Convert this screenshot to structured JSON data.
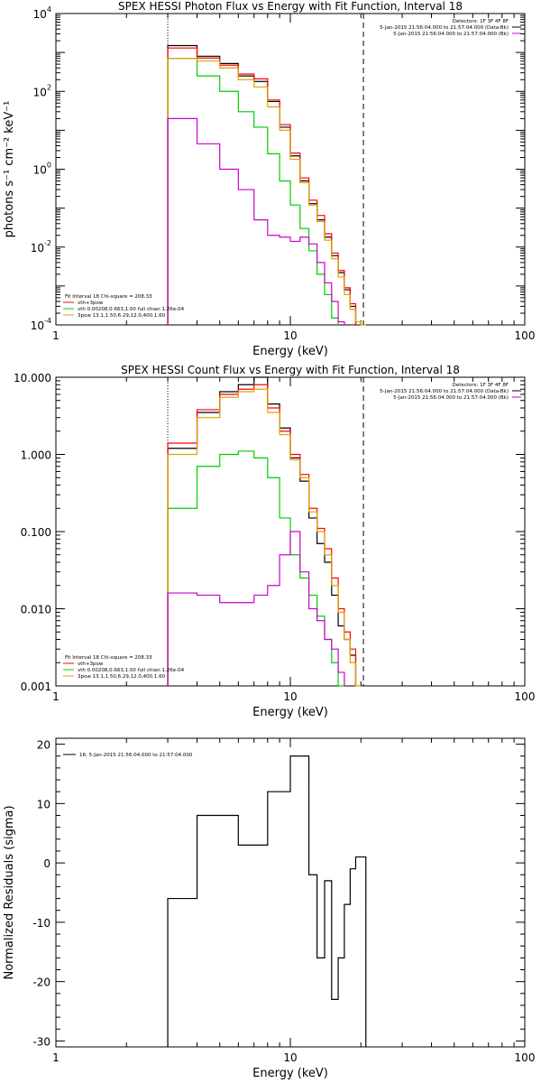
{
  "chart_data": [
    {
      "type": "line",
      "title": "SPEX HESSI Photon Flux vs Energy with Fit Function, Interval 18",
      "xlabel": "Energy (keV)",
      "ylabel": "photons s⁻¹ cm⁻² keV⁻¹",
      "xscale": "log",
      "yscale": "log",
      "xlim": [
        1,
        100
      ],
      "ylim": [
        0.0001,
        10000
      ],
      "x_ticks": [
        "1",
        "10",
        "100"
      ],
      "y_ticks": [
        {
          "base": "10",
          "exp": "4"
        },
        {
          "base": "10",
          "exp": "2"
        },
        {
          "base": "10",
          "exp": "0"
        },
        {
          "base": "10",
          "exp": "-2"
        },
        {
          "base": "10",
          "exp": "-4"
        }
      ],
      "vlines": [
        {
          "x": 3.0,
          "style": "dotted"
        },
        {
          "x": 20.5,
          "style": "dashed"
        }
      ],
      "legend_tr": [
        "Detectors: 1F 3F 4F 8F",
        "5-Jan-2015 21:56:04.000 to 21:57:04.000 (Data-Bk)",
        "5-Jan-2015 21:56:04.000 to 21:57:04.000 (Bk)"
      ],
      "legend_bl": [
        "Fit Interval 18   Chi-square = 208.33",
        "vth+3pow",
        "vth 0.00208,0.663,1.00  full chian 1.26e-04",
        "3pow 13.1,1.50,6.29,12.0,400.1.60"
      ],
      "edges": [
        3,
        4,
        5,
        6,
        7,
        8,
        9,
        10,
        11,
        12,
        13,
        14,
        15,
        16,
        17,
        18,
        19,
        20,
        21
      ],
      "series": [
        {
          "color": "#000000",
          "values": [
            1500,
            800,
            520,
            250,
            180,
            55,
            12,
            2.2,
            0.5,
            0.13,
            0.05,
            0.018,
            0.006,
            0.0022,
            0.0008,
            0.0003,
            null,
            null
          ]
        },
        {
          "color": "#ff0000",
          "values": [
            1300,
            720,
            470,
            280,
            210,
            60,
            14,
            2.6,
            0.6,
            0.16,
            0.065,
            0.022,
            0.007,
            0.0025,
            0.0009,
            0.00035,
            null,
            null
          ]
        },
        {
          "color": "#00cc00",
          "values": [
            700,
            250,
            100,
            30,
            12,
            2.5,
            0.5,
            0.12,
            0.03,
            0.008,
            0.002,
            0.0006,
            0.00015,
            null,
            null,
            null,
            null,
            null
          ]
        },
        {
          "color": "#e0a000",
          "values": [
            700,
            600,
            400,
            200,
            130,
            40,
            10,
            1.8,
            0.45,
            0.12,
            0.045,
            0.015,
            0.005,
            0.0017,
            0.0006,
            0.00025,
            0.00012,
            0.0001
          ]
        },
        {
          "color": "#cc00cc",
          "values": [
            20,
            4.5,
            1.0,
            0.3,
            0.05,
            0.02,
            0.018,
            0.014,
            0.018,
            0.012,
            0.004,
            0.0012,
            0.0004,
            0.00012,
            null,
            null,
            null,
            null
          ]
        }
      ]
    },
    {
      "type": "line",
      "title": "SPEX HESSI Count Flux vs Energy with Fit Function, Interval 18",
      "xlabel": "Energy (keV)",
      "ylabel": "",
      "xscale": "log",
      "yscale": "log",
      "xlim": [
        1,
        100
      ],
      "ylim": [
        0.001,
        10
      ],
      "x_ticks": [
        "1",
        "10",
        "100"
      ],
      "y_ticks": [
        {
          "base": "10.000",
          "exp": ""
        },
        {
          "base": "1.000",
          "exp": ""
        },
        {
          "base": "0.100",
          "exp": ""
        },
        {
          "base": "0.010",
          "exp": ""
        },
        {
          "base": "0.001",
          "exp": ""
        }
      ],
      "vlines": [
        {
          "x": 3.0,
          "style": "dotted"
        },
        {
          "x": 20.5,
          "style": "dashed"
        }
      ],
      "legend_tr": [
        "Detectors: 1F 3F 4F 8F",
        "5-Jan-2015 21:56:04.000 to 21:57:04.000 (Data-Bk)",
        "5-Jan-2015 21:56:04.000 to 21:57:04.000 (Bk)"
      ],
      "legend_bl": [
        "Fit Interval 18   Chi-square = 208.33",
        "vth+3pow",
        "vth 0.00208,0.663,1.00  full chian 1.26e-04",
        "3pow 13.1,1.50,6.29,12.0,400.1.60"
      ],
      "edges": [
        3,
        4,
        5,
        6,
        7,
        8,
        9,
        10,
        11,
        12,
        13,
        14,
        15,
        16,
        17,
        18,
        19,
        20,
        21
      ],
      "series": [
        {
          "color": "#000000",
          "values": [
            1.2,
            3.5,
            6.5,
            8.0,
            10.0,
            4.5,
            2.2,
            0.9,
            0.45,
            0.15,
            0.07,
            0.04,
            0.015,
            0.006,
            0.004,
            0.0025,
            null,
            null
          ]
        },
        {
          "color": "#ff0000",
          "values": [
            1.4,
            3.8,
            6.0,
            7.0,
            8.0,
            4.0,
            2.0,
            1.0,
            0.55,
            0.2,
            0.11,
            0.06,
            0.025,
            0.01,
            0.005,
            0.003,
            null,
            null
          ]
        },
        {
          "color": "#00cc00",
          "values": [
            0.2,
            0.7,
            1.0,
            1.1,
            0.9,
            0.5,
            0.15,
            0.05,
            0.025,
            0.015,
            0.008,
            0.004,
            0.002,
            0.001,
            null,
            null,
            null,
            null
          ]
        },
        {
          "color": "#e0a000",
          "values": [
            1.0,
            3.0,
            5.5,
            6.5,
            7.0,
            3.5,
            1.8,
            0.85,
            0.5,
            0.18,
            0.1,
            0.05,
            0.02,
            0.009,
            0.004,
            0.002,
            0.001,
            null
          ]
        },
        {
          "color": "#cc00cc",
          "values": [
            0.016,
            0.015,
            0.012,
            0.012,
            0.015,
            0.02,
            0.05,
            0.1,
            0.03,
            0.01,
            0.007,
            0.004,
            0.003,
            0.0015,
            null,
            null,
            null,
            null
          ]
        }
      ]
    },
    {
      "type": "line",
      "title": "",
      "xlabel": "Energy (keV)",
      "ylabel": "Normalized Residuals (sigma)",
      "xscale": "log",
      "yscale": "linear",
      "xlim": [
        1,
        100
      ],
      "ylim": [
        -31,
        21
      ],
      "x_ticks": [
        "1",
        "10",
        "100"
      ],
      "y_ticks": [
        {
          "base": "20",
          "exp": ""
        },
        {
          "base": "10",
          "exp": ""
        },
        {
          "base": "0",
          "exp": ""
        },
        {
          "base": "-10",
          "exp": ""
        },
        {
          "base": "-20",
          "exp": ""
        },
        {
          "base": "-30",
          "exp": ""
        }
      ],
      "legend_tl": [
        "18,  5-Jan-2015 21:56:04.000 to 21:57:04.000"
      ],
      "edges": [
        3,
        4,
        5,
        6,
        7,
        8,
        9,
        10,
        11,
        12,
        13,
        14,
        15,
        16,
        17,
        18,
        19,
        20,
        21
      ],
      "series": [
        {
          "color": "#000000",
          "values": [
            -6,
            8,
            8,
            3,
            3,
            12,
            12,
            18,
            18,
            -2,
            -16,
            -3,
            -23,
            -16,
            -7,
            -1,
            1,
            1
          ]
        }
      ]
    }
  ]
}
